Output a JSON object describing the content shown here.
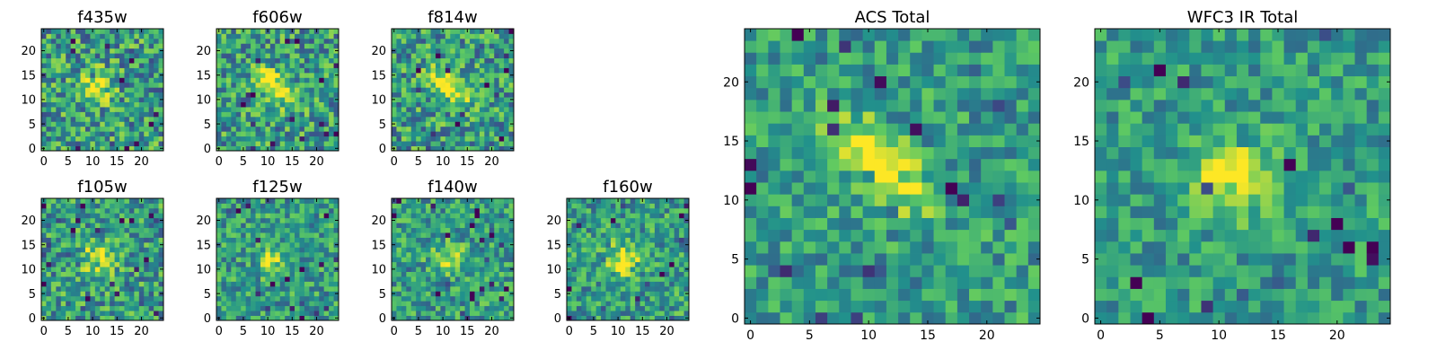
{
  "chart_data": [
    {
      "type": "heatmap",
      "title": "f435w",
      "xlim": [
        0,
        24
      ],
      "ylim": [
        0,
        24
      ],
      "xticks": [
        "0",
        "5",
        "10",
        "15",
        "20"
      ],
      "yticks": [
        "0",
        "5",
        "10",
        "15",
        "20"
      ],
      "grid": false,
      "colormap": "viridis",
      "source_peak": [
        11,
        13
      ],
      "source_shape": "round",
      "source_strength": 0.45,
      "noise_level": 0.32
    },
    {
      "type": "heatmap",
      "title": "f606w",
      "xlim": [
        0,
        24
      ],
      "ylim": [
        0,
        24
      ],
      "xticks": [
        "0",
        "5",
        "10",
        "15",
        "20"
      ],
      "yticks": [
        "0",
        "5",
        "10",
        "15",
        "20"
      ],
      "grid": false,
      "colormap": "viridis",
      "source_peak": [
        11,
        13
      ],
      "source_shape": "diagonal",
      "source_strength": 0.55,
      "noise_level": 0.3
    },
    {
      "type": "heatmap",
      "title": "f814w",
      "xlim": [
        0,
        24
      ],
      "ylim": [
        0,
        24
      ],
      "xticks": [
        "0",
        "5",
        "10",
        "15",
        "20"
      ],
      "yticks": [
        "0",
        "5",
        "10",
        "15",
        "20"
      ],
      "grid": false,
      "colormap": "viridis",
      "source_peak": [
        11,
        13
      ],
      "source_shape": "diagonal",
      "source_strength": 0.55,
      "noise_level": 0.3
    },
    {
      "type": "heatmap",
      "title": "f105w",
      "xlim": [
        0,
        24
      ],
      "ylim": [
        0,
        24
      ],
      "xticks": [
        "0",
        "5",
        "10",
        "15",
        "20"
      ],
      "yticks": [
        "0",
        "5",
        "10",
        "15",
        "20"
      ],
      "grid": false,
      "colormap": "viridis",
      "source_peak": [
        11,
        12
      ],
      "source_shape": "round",
      "source_strength": 0.4,
      "noise_level": 0.28
    },
    {
      "type": "heatmap",
      "title": "f125w",
      "xlim": [
        0,
        24
      ],
      "ylim": [
        0,
        24
      ],
      "xticks": [
        "0",
        "5",
        "10",
        "15",
        "20"
      ],
      "yticks": [
        "0",
        "5",
        "10",
        "15",
        "20"
      ],
      "grid": false,
      "colormap": "viridis",
      "source_peak": [
        11,
        12
      ],
      "source_shape": "round",
      "source_strength": 0.3,
      "noise_level": 0.25
    },
    {
      "type": "heatmap",
      "title": "f140w",
      "xlim": [
        0,
        24
      ],
      "ylim": [
        0,
        24
      ],
      "xticks": [
        "0",
        "5",
        "10",
        "15",
        "20"
      ],
      "yticks": [
        "0",
        "5",
        "10",
        "15",
        "20"
      ],
      "grid": false,
      "colormap": "viridis",
      "source_peak": [
        11,
        12
      ],
      "source_shape": "round",
      "source_strength": 0.35,
      "noise_level": 0.25
    },
    {
      "type": "heatmap",
      "title": "f160w",
      "xlim": [
        0,
        24
      ],
      "ylim": [
        0,
        24
      ],
      "xticks": [
        "0",
        "5",
        "10",
        "15",
        "20"
      ],
      "yticks": [
        "0",
        "5",
        "10",
        "15",
        "20"
      ],
      "grid": false,
      "colormap": "viridis",
      "source_peak": [
        11,
        12
      ],
      "source_shape": "round",
      "source_strength": 0.45,
      "noise_level": 0.26
    },
    {
      "type": "heatmap",
      "title": "ACS Total",
      "xlim": [
        0,
        24
      ],
      "ylim": [
        0,
        24
      ],
      "xticks": [
        "0",
        "5",
        "10",
        "15",
        "20"
      ],
      "yticks": [
        "0",
        "5",
        "10",
        "15",
        "20"
      ],
      "grid": false,
      "colormap": "viridis",
      "source_peak": [
        11,
        13
      ],
      "source_shape": "diagonal",
      "source_strength": 0.6,
      "noise_level": 0.22
    },
    {
      "type": "heatmap",
      "title": "WFC3 IR Total",
      "xlim": [
        0,
        24
      ],
      "ylim": [
        0,
        24
      ],
      "xticks": [
        "0",
        "5",
        "10",
        "15",
        "20"
      ],
      "yticks": [
        "0",
        "5",
        "10",
        "15",
        "20"
      ],
      "grid": false,
      "colormap": "viridis",
      "source_peak": [
        11,
        12
      ],
      "source_shape": "round",
      "source_strength": 0.5,
      "noise_level": 0.2
    }
  ]
}
